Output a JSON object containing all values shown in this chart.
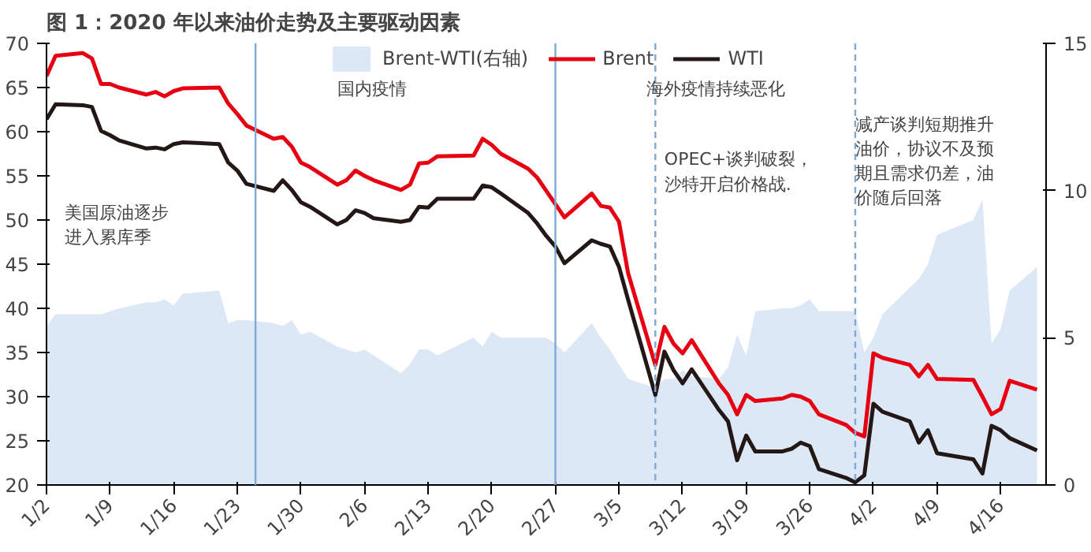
{
  "chart_data": {
    "type": "line",
    "title": "图 1：2020 年以来油价走势及主要驱动因素",
    "x": [
      "2020-01-02",
      "2020-01-03",
      "2020-01-06",
      "2020-01-07",
      "2020-01-08",
      "2020-01-09",
      "2020-01-10",
      "2020-01-13",
      "2020-01-14",
      "2020-01-15",
      "2020-01-16",
      "2020-01-17",
      "2020-01-21",
      "2020-01-22",
      "2020-01-23",
      "2020-01-24",
      "2020-01-27",
      "2020-01-28",
      "2020-01-29",
      "2020-01-30",
      "2020-01-31",
      "2020-02-03",
      "2020-02-04",
      "2020-02-05",
      "2020-02-06",
      "2020-02-07",
      "2020-02-10",
      "2020-02-11",
      "2020-02-12",
      "2020-02-13",
      "2020-02-14",
      "2020-02-18",
      "2020-02-19",
      "2020-02-20",
      "2020-02-21",
      "2020-02-24",
      "2020-02-25",
      "2020-02-26",
      "2020-02-27",
      "2020-02-28",
      "2020-03-02",
      "2020-03-03",
      "2020-03-04",
      "2020-03-05",
      "2020-03-06",
      "2020-03-09",
      "2020-03-10",
      "2020-03-11",
      "2020-03-12",
      "2020-03-13",
      "2020-03-16",
      "2020-03-17",
      "2020-03-18",
      "2020-03-19",
      "2020-03-20",
      "2020-03-23",
      "2020-03-24",
      "2020-03-25",
      "2020-03-26",
      "2020-03-27",
      "2020-03-30",
      "2020-03-31",
      "2020-04-01",
      "2020-04-02",
      "2020-04-03",
      "2020-04-06",
      "2020-04-07",
      "2020-04-08",
      "2020-04-09",
      "2020-04-13",
      "2020-04-14",
      "2020-04-15",
      "2020-04-16",
      "2020-04-17",
      "2020-04-20"
    ],
    "series": [
      {
        "name": "Brent-WTI(右轴)",
        "type": "area",
        "axis": "y2",
        "color": "#dce8f5",
        "values": [
          5.4,
          5.8,
          5.8,
          5.8,
          5.8,
          5.9,
          6.0,
          6.2,
          6.2,
          6.3,
          6.1,
          6.5,
          6.6,
          5.5,
          5.6,
          5.6,
          5.5,
          5.4,
          5.6,
          5.1,
          5.2,
          4.7,
          4.6,
          4.5,
          4.6,
          4.4,
          3.8,
          4.1,
          4.6,
          4.6,
          4.4,
          5.0,
          4.7,
          5.2,
          5.0,
          5.0,
          5.0,
          5.0,
          4.8,
          4.5,
          5.5,
          5.0,
          4.6,
          4.1,
          3.6,
          3.3,
          3.6,
          3.6,
          3.9,
          3.7,
          3.6,
          4.0,
          5.1,
          4.4,
          5.9,
          6.0,
          6.0,
          6.1,
          6.3,
          5.9,
          5.9,
          5.9,
          4.5,
          5.0,
          5.8,
          6.7,
          7.0,
          7.5,
          8.5,
          9.0,
          9.7,
          4.8,
          5.3,
          6.6,
          7.4
        ]
      },
      {
        "name": "Brent",
        "color": "#e60012",
        "values": [
          66.3,
          68.6,
          68.9,
          68.3,
          65.4,
          65.4,
          65.0,
          64.2,
          64.5,
          64.0,
          64.6,
          64.9,
          65.0,
          63.2,
          62.0,
          60.7,
          59.2,
          59.4,
          58.3,
          56.5,
          56.0,
          54.0,
          54.5,
          55.6,
          55.0,
          54.5,
          53.4,
          54.0,
          56.4,
          56.5,
          57.2,
          57.3,
          59.2,
          58.5,
          57.5,
          55.8,
          54.8,
          53.3,
          51.8,
          50.3,
          53.0,
          51.6,
          51.4,
          49.8,
          44.0,
          33.6,
          37.9,
          36.0,
          34.9,
          36.4,
          31.5,
          30.2,
          28.0,
          30.2,
          29.5,
          29.8,
          30.2,
          30.0,
          29.5,
          28.0,
          26.8,
          25.9,
          25.5,
          34.9,
          34.4,
          33.6,
          32.3,
          33.6,
          32.0,
          31.9,
          30.0,
          28.0,
          28.6,
          31.8,
          30.8
        ]
      },
      {
        "name": "WTI",
        "color": "#231815",
        "values": [
          61.4,
          63.1,
          63.0,
          62.8,
          60.1,
          59.6,
          59.0,
          58.1,
          58.2,
          58.0,
          58.6,
          58.8,
          58.6,
          56.5,
          55.6,
          54.1,
          53.3,
          54.5,
          53.4,
          52.0,
          51.5,
          49.5,
          50.0,
          51.1,
          50.8,
          50.2,
          49.8,
          50.0,
          51.5,
          51.4,
          52.4,
          52.4,
          53.9,
          53.7,
          53.0,
          50.8,
          49.6,
          48.2,
          47.0,
          45.1,
          47.7,
          47.3,
          47.0,
          44.7,
          41.0,
          30.2,
          35.1,
          33.0,
          31.5,
          33.1,
          28.5,
          27.2,
          22.8,
          25.6,
          23.8,
          23.8,
          24.1,
          24.8,
          24.4,
          21.8,
          20.8,
          20.3,
          21.1,
          29.2,
          28.3,
          27.2,
          24.8,
          26.2,
          23.6,
          22.9,
          21.3,
          26.7,
          26.2,
          25.3,
          23.9
        ]
      }
    ],
    "xlim": [
      "2020-01-02",
      "2020-04-21"
    ],
    "xticks": [
      {
        "value": "2020-01-02",
        "label": "1/2"
      },
      {
        "value": "2020-01-09",
        "label": "1/9"
      },
      {
        "value": "2020-01-16",
        "label": "1/16"
      },
      {
        "value": "2020-01-23",
        "label": "1/23"
      },
      {
        "value": "2020-01-30",
        "label": "1/30"
      },
      {
        "value": "2020-02-06",
        "label": "2/6"
      },
      {
        "value": "2020-02-13",
        "label": "2/13"
      },
      {
        "value": "2020-02-20",
        "label": "2/20"
      },
      {
        "value": "2020-02-27",
        "label": "2/27"
      },
      {
        "value": "2020-03-05",
        "label": "3/5"
      },
      {
        "value": "2020-03-12",
        "label": "3/12"
      },
      {
        "value": "2020-03-19",
        "label": "3/19"
      },
      {
        "value": "2020-03-26",
        "label": "3/26"
      },
      {
        "value": "2020-04-02",
        "label": "4/2"
      },
      {
        "value": "2020-04-09",
        "label": "4/9"
      },
      {
        "value": "2020-04-16",
        "label": "4/16"
      }
    ],
    "ylim": [
      20,
      70
    ],
    "yticks": [
      20,
      25,
      30,
      35,
      40,
      45,
      50,
      55,
      60,
      65,
      70
    ],
    "y2lim": [
      0,
      15
    ],
    "y2ticks": [
      0,
      5,
      10,
      15
    ],
    "ref_lines": [
      {
        "axis": "x",
        "value": "2020-01-25",
        "color": "#7fa9d6",
        "line_style": "solid"
      },
      {
        "axis": "x",
        "value": "2020-02-27",
        "color": "#7fa9d6",
        "line_style": "solid"
      },
      {
        "axis": "x",
        "value": "2020-03-09",
        "color": "#7fa9d6",
        "line_style": "dashed"
      },
      {
        "axis": "x",
        "value": "2020-03-31",
        "color": "#7fa9d6",
        "line_style": "dashed"
      }
    ],
    "annotations": [
      "美国原油逐步进入累库季",
      "国内疫情",
      "海外疫情持续恶化",
      "OPEC+谈判破裂，沙特开启价格战.",
      "减产谈判短期推升油价，协议不及预期且需求仍差，油价随后回落"
    ],
    "legend": "top",
    "grid": false,
    "marker": "none",
    "line_style": "solid"
  }
}
